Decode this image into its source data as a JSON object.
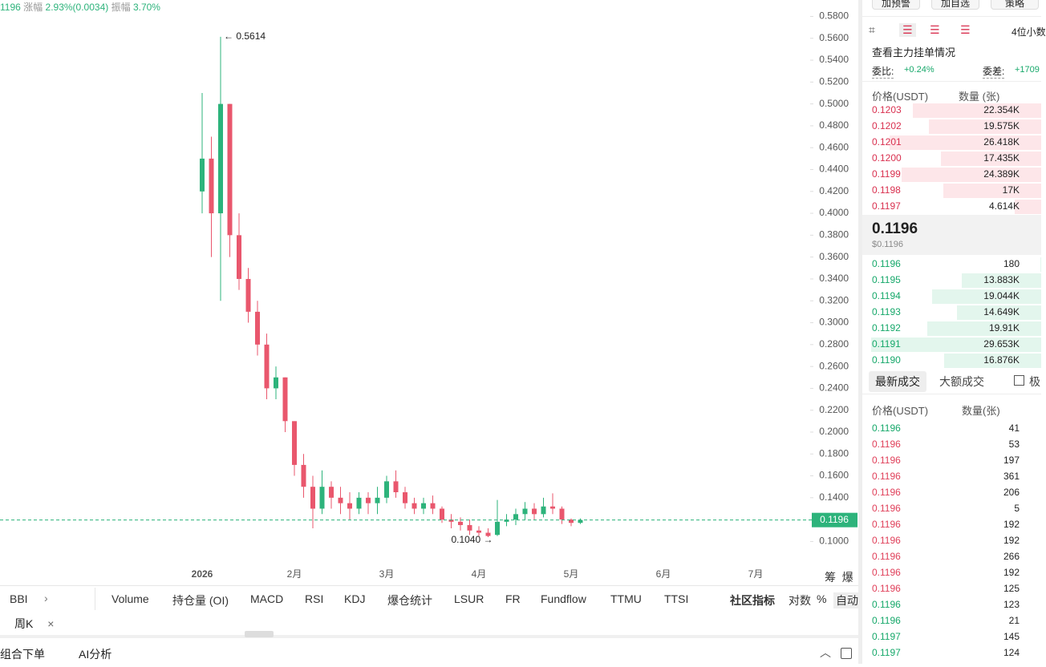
{
  "header": {
    "symbol_price": "1196",
    "change_label": "涨幅",
    "change_value": "2.93%(0.0034)",
    "amplitude_label": "振幅",
    "amplitude_value": "3.70%"
  },
  "top_buttons": [
    "加预警",
    "加自选",
    "策略"
  ],
  "chart_data": {
    "type": "candlestick",
    "categories": [
      "2026",
      null,
      null,
      null,
      null,
      null,
      null,
      null,
      null,
      null,
      "2月",
      null,
      null,
      null,
      null,
      null,
      null,
      null,
      null,
      null,
      "3月",
      null,
      null,
      null,
      null,
      null,
      null,
      null,
      null,
      null,
      "4月",
      null,
      null,
      null,
      null,
      null,
      null,
      null,
      null,
      null,
      "5月",
      null,
      null,
      null,
      null,
      null,
      null,
      null,
      null,
      null,
      "6月",
      null,
      null,
      null,
      null,
      null,
      null,
      null,
      null,
      null,
      "7月",
      null,
      null,
      null,
      null,
      null,
      null
    ],
    "open": [
      0.42,
      0.45,
      0.4,
      0.5,
      0.38,
      0.34,
      0.31,
      0.28,
      0.24,
      0.25,
      0.21,
      0.17,
      0.15,
      0.13,
      0.15,
      0.14,
      0.135,
      0.13,
      0.14,
      0.135,
      0.14,
      0.155,
      0.145,
      0.135,
      0.13,
      0.135,
      0.13,
      0.12,
      0.118,
      0.115,
      0.11,
      0.108,
      0.106,
      0.118,
      0.12,
      0.125,
      0.13,
      0.125,
      0.132,
      0.13,
      0.12,
      0.117,
      null,
      null,
      null,
      null,
      null,
      null,
      null,
      null,
      null,
      null,
      null,
      null,
      null,
      null,
      null,
      null,
      null,
      null,
      null,
      null,
      null,
      null,
      null,
      null,
      null
    ],
    "high": [
      0.51,
      0.47,
      0.5614,
      0.5,
      0.4,
      0.35,
      0.32,
      0.29,
      0.26,
      0.25,
      0.21,
      0.18,
      0.16,
      0.165,
      0.155,
      0.15,
      0.145,
      0.145,
      0.145,
      0.15,
      0.16,
      0.165,
      0.15,
      0.14,
      0.14,
      0.142,
      0.132,
      0.125,
      0.122,
      0.12,
      0.114,
      0.112,
      0.138,
      0.125,
      0.13,
      0.136,
      0.135,
      0.14,
      0.144,
      0.132,
      0.121,
      0.121,
      null,
      null,
      null,
      null,
      null,
      null,
      null,
      null,
      null,
      null,
      null,
      null,
      null,
      null,
      null,
      null,
      null,
      null,
      null,
      null,
      null,
      null,
      null,
      null,
      null
    ],
    "low": [
      0.4,
      0.36,
      0.32,
      0.36,
      0.33,
      0.3,
      0.27,
      0.23,
      0.23,
      0.2,
      0.16,
      0.14,
      0.112,
      0.125,
      0.13,
      0.125,
      0.12,
      0.125,
      0.125,
      0.125,
      0.135,
      0.14,
      0.13,
      0.125,
      0.125,
      0.125,
      0.117,
      0.112,
      0.11,
      0.106,
      0.105,
      0.104,
      0.105,
      0.114,
      0.115,
      0.12,
      0.12,
      0.122,
      0.125,
      0.116,
      0.114,
      0.116,
      null,
      null,
      null,
      null,
      null,
      null,
      null,
      null,
      null,
      null,
      null,
      null,
      null,
      null,
      null,
      null,
      null,
      null,
      null,
      null,
      null,
      null,
      null,
      null,
      null
    ],
    "close": [
      0.45,
      0.4,
      0.5,
      0.38,
      0.34,
      0.31,
      0.28,
      0.24,
      0.25,
      0.21,
      0.17,
      0.15,
      0.13,
      0.15,
      0.14,
      0.135,
      0.13,
      0.14,
      0.135,
      0.14,
      0.155,
      0.145,
      0.135,
      0.13,
      0.135,
      0.13,
      0.12,
      0.118,
      0.115,
      0.11,
      0.108,
      0.105,
      0.118,
      0.12,
      0.125,
      0.13,
      0.125,
      0.132,
      0.13,
      0.12,
      0.117,
      0.1196,
      null,
      null,
      null,
      null,
      null,
      null,
      null,
      null,
      null,
      null,
      null,
      null,
      null,
      null,
      null,
      null,
      null,
      null,
      null,
      null,
      null,
      null,
      null,
      null,
      null
    ],
    "up_color": "#2db37b",
    "down_color": "#e9576d",
    "ylim": [
      0.06,
      0.595
    ],
    "yticks": [
      {
        "value": 0.1,
        "label": "0.1000"
      },
      {
        "value": 0.12,
        "label": "0.1200"
      },
      {
        "value": 0.14,
        "label": "0.1400"
      },
      {
        "value": 0.16,
        "label": "0.1600"
      },
      {
        "value": 0.18,
        "label": "0.1800"
      },
      {
        "value": 0.2,
        "label": "0.2000"
      },
      {
        "value": 0.22,
        "label": "0.2200"
      },
      {
        "value": 0.24,
        "label": "0.2400"
      },
      {
        "value": 0.26,
        "label": "0.2600"
      },
      {
        "value": 0.28,
        "label": "0.2800"
      },
      {
        "value": 0.3,
        "label": "0.3000"
      },
      {
        "value": 0.32,
        "label": "0.3200"
      },
      {
        "value": 0.34,
        "label": "0.3400"
      },
      {
        "value": 0.36,
        "label": "0.3600"
      },
      {
        "value": 0.38,
        "label": "0.3800"
      },
      {
        "value": 0.4,
        "label": "0.4000"
      },
      {
        "value": 0.42,
        "label": "0.4200"
      },
      {
        "value": 0.44,
        "label": "0.4400"
      },
      {
        "value": 0.46,
        "label": "0.4600"
      },
      {
        "value": 0.48,
        "label": "0.4800"
      },
      {
        "value": 0.5,
        "label": "0.5000"
      },
      {
        "value": 0.52,
        "label": "0.5200"
      },
      {
        "value": 0.54,
        "label": "0.5400"
      },
      {
        "value": 0.56,
        "label": "0.5600"
      },
      {
        "value": 0.58,
        "label": "0.5800"
      }
    ],
    "high_annotation": 0.5614,
    "low_annotation": {
      "value": 0.104,
      "label": "0.1040"
    },
    "last_price": 0.1196,
    "last_price_color": "#2db37b"
  },
  "indicator_bar": [
    "BBI",
    "Volume",
    "持仓量 (OI)",
    "MACD",
    "RSI",
    "KDJ",
    "爆仓统计",
    "LSUR",
    "FR",
    "Fundflow",
    "TTMU",
    "TTSI",
    "社区指标",
    "对数",
    "%",
    "自动"
  ],
  "side_icons": [
    "筹",
    "爆"
  ],
  "interval_tab": "周K",
  "bottom_bar": [
    "组合下单",
    "AI分析"
  ],
  "order_book": {
    "precision": "4位小数",
    "main_orders": "查看主力挂单情况",
    "ratio_label": "委比:",
    "ratio": "+0.24%",
    "diff_label": "委差:",
    "diff": "+1709",
    "price_header": "价格(USDT)",
    "qty_header": "数量 (张)",
    "asks": [
      {
        "price": "0.1203",
        "qty": {
          "value": 22354,
          "label": "22.354K"
        }
      },
      {
        "price": "0.1202",
        "qty": {
          "value": 19575,
          "label": "19.575K"
        }
      },
      {
        "price": "0.1201",
        "qty": {
          "value": 26418,
          "label": "26.418K"
        }
      },
      {
        "price": "0.1200",
        "qty": {
          "value": 17435,
          "label": "17.435K"
        }
      },
      {
        "price": "0.1199",
        "qty": {
          "value": 24389,
          "label": "24.389K"
        }
      },
      {
        "price": "0.1198",
        "qty": {
          "value": 17000,
          "label": "17K"
        }
      },
      {
        "price": "0.1197",
        "qty": {
          "value": 4614,
          "label": "4.614K"
        }
      }
    ],
    "mid_price": "0.1196",
    "mid_price_usd": "$0.1196",
    "bids": [
      {
        "price": "0.1196",
        "qty": {
          "value": 180,
          "label": "180"
        }
      },
      {
        "price": "0.1195",
        "qty": {
          "value": 13883,
          "label": "13.883K"
        }
      },
      {
        "price": "0.1194",
        "qty": {
          "value": 19044,
          "label": "19.044K"
        }
      },
      {
        "price": "0.1193",
        "qty": {
          "value": 14649,
          "label": "14.649K"
        }
      },
      {
        "price": "0.1192",
        "qty": {
          "value": 19910,
          "label": "19.91K"
        }
      },
      {
        "price": "0.1191",
        "qty": {
          "value": 29653,
          "label": "29.653K"
        }
      },
      {
        "price": "0.1190",
        "qty": {
          "value": 16876,
          "label": "16.876K"
        }
      }
    ]
  },
  "trades": {
    "tabs": [
      "最新成交",
      "大额成交",
      "极"
    ],
    "price_header": "价格(USDT)",
    "qty_header": "数量(张)",
    "rows": [
      {
        "price": "0.1196",
        "qty": 41,
        "color": "#16a86a"
      },
      {
        "price": "0.1196",
        "qty": 53,
        "color": "#e0405a"
      },
      {
        "price": "0.1196",
        "qty": 197,
        "color": "#e0405a"
      },
      {
        "price": "0.1196",
        "qty": 361,
        "color": "#e0405a"
      },
      {
        "price": "0.1196",
        "qty": 206,
        "color": "#e0405a"
      },
      {
        "price": "0.1196",
        "qty": 5,
        "color": "#e0405a"
      },
      {
        "price": "0.1196",
        "qty": 192,
        "color": "#e0405a"
      },
      {
        "price": "0.1196",
        "qty": 192,
        "color": "#e0405a"
      },
      {
        "price": "0.1196",
        "qty": 266,
        "color": "#e0405a"
      },
      {
        "price": "0.1196",
        "qty": 192,
        "color": "#e0405a"
      },
      {
        "price": "0.1196",
        "qty": 125,
        "color": "#e0405a"
      },
      {
        "price": "0.1196",
        "qty": 123,
        "color": "#16a86a"
      },
      {
        "price": "0.1196",
        "qty": 21,
        "color": "#16a86a"
      },
      {
        "price": "0.1197",
        "qty": 145,
        "color": "#16a86a"
      },
      {
        "price": "0.1197",
        "qty": 124,
        "color": "#16a86a"
      }
    ]
  }
}
